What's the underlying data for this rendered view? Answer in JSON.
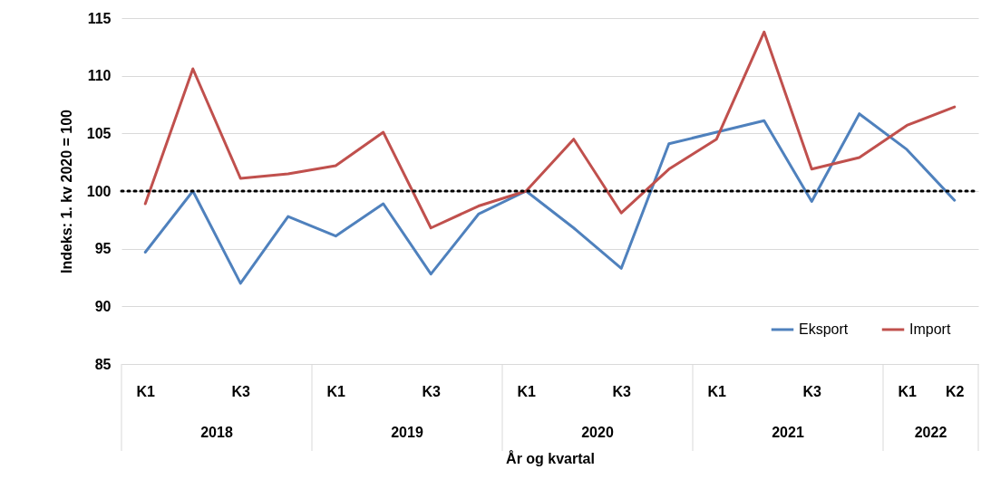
{
  "chart_data": {
    "type": "line",
    "xlabel": "År og kvartal",
    "ylabel": "Indeks: 1. kv 2020 = 100",
    "categories": [
      "K1",
      null,
      "K3",
      null,
      "K1",
      null,
      "K3",
      null,
      "K1",
      null,
      "K3",
      null,
      "K1",
      null,
      "K3",
      null,
      "K1",
      "K2"
    ],
    "series": [
      {
        "name": "Eksport",
        "color": "#4f81bd",
        "values": [
          94.7,
          100,
          92.0,
          97.8,
          96.1,
          98.9,
          92.8,
          98.0,
          100,
          96.8,
          93.3,
          104.1,
          105.1,
          106.1,
          99.1,
          106.7,
          103.6,
          99.2
        ]
      },
      {
        "name": "Import",
        "color": "#c0504d",
        "values": [
          98.9,
          110.6,
          101.1,
          101.5,
          102.2,
          105.1,
          96.8,
          98.7,
          100,
          104.5,
          98.1,
          101.9,
          104.5,
          113.8,
          101.9,
          102.9,
          105.7,
          107.3
        ]
      }
    ],
    "annotations": [
      "2018",
      "2019",
      "2020",
      "2021",
      "2022"
    ],
    "ylim": [
      85,
      115
    ],
    "yticks": [
      85,
      90,
      95,
      100,
      105,
      110,
      115
    ],
    "ref_lines": [
      {
        "axis": "y",
        "value": 100,
        "color": "#000000",
        "line_style": "dotted"
      }
    ],
    "grid": "y",
    "legend": "bottom right"
  }
}
